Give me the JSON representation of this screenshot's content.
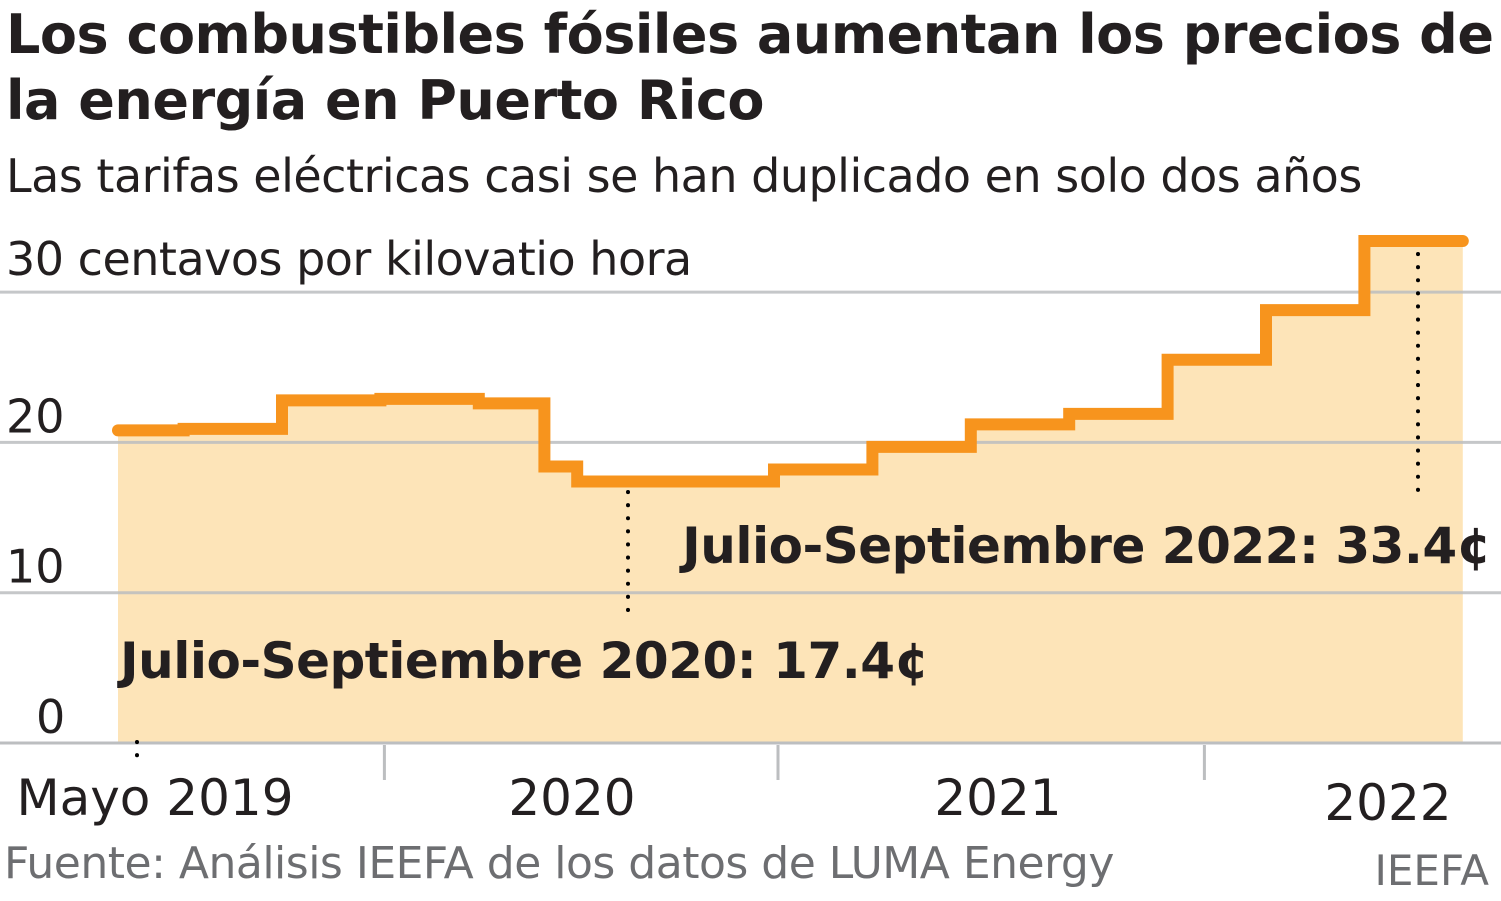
{
  "title": "Los combustibles fósiles aumentan los precios de la energía en Puerto Rico",
  "subtitle": "Las tarifas eléctricas casi se han duplicado en solo dos años",
  "source": "Fuente: Análisis IEEFA de los datos de LUMA Energy",
  "credit": "IEEFA",
  "colors": {
    "line": "#f7941d",
    "fill": "#fde4b8",
    "grid": "#bcbec0",
    "text": "#231f20"
  },
  "chart_data": {
    "type": "area",
    "step": true,
    "ylabel": "30 centavos por kilovatio hora",
    "ylim": [
      0,
      30
    ],
    "yticks": [
      0,
      10,
      20,
      30
    ],
    "ytick_labels": [
      "0",
      "10",
      "20",
      "30 centavos por kilovatio hora"
    ],
    "grid": true,
    "x_tick_labels": [
      "Mayo 2019",
      "2020",
      "2021",
      "2022"
    ],
    "x_start": "2019-05",
    "x_end": "2022-09",
    "steps": [
      {
        "from": "2019-05",
        "to": "2019-06",
        "value": 20.8
      },
      {
        "from": "2019-07",
        "to": "2019-09",
        "value": 20.9
      },
      {
        "from": "2019-10",
        "to": "2019-12",
        "value": 22.8
      },
      {
        "from": "2020-01",
        "to": "2020-03",
        "value": 22.9
      },
      {
        "from": "2020-04",
        "to": "2020-05",
        "value": 22.6
      },
      {
        "from": "2020-06",
        "to": "2020-06",
        "value": 18.4
      },
      {
        "from": "2020-07",
        "to": "2020-12",
        "value": 17.4
      },
      {
        "from": "2021-01",
        "to": "2021-03",
        "value": 18.2
      },
      {
        "from": "2021-04",
        "to": "2021-06",
        "value": 19.7
      },
      {
        "from": "2021-07",
        "to": "2021-09",
        "value": 21.2
      },
      {
        "from": "2021-10",
        "to": "2021-12",
        "value": 21.9
      },
      {
        "from": "2022-01",
        "to": "2022-03",
        "value": 25.5
      },
      {
        "from": "2022-04",
        "to": "2022-06",
        "value": 28.8
      },
      {
        "from": "2022-07",
        "to": "2022-09",
        "value": 33.4
      }
    ],
    "annotations": [
      {
        "text": "Julio-Septiembre 2020: 17.4¢",
        "at": "2020-07"
      },
      {
        "text": "Julio-Septiembre 2022:  33.4¢",
        "at": "2022-09"
      }
    ]
  }
}
